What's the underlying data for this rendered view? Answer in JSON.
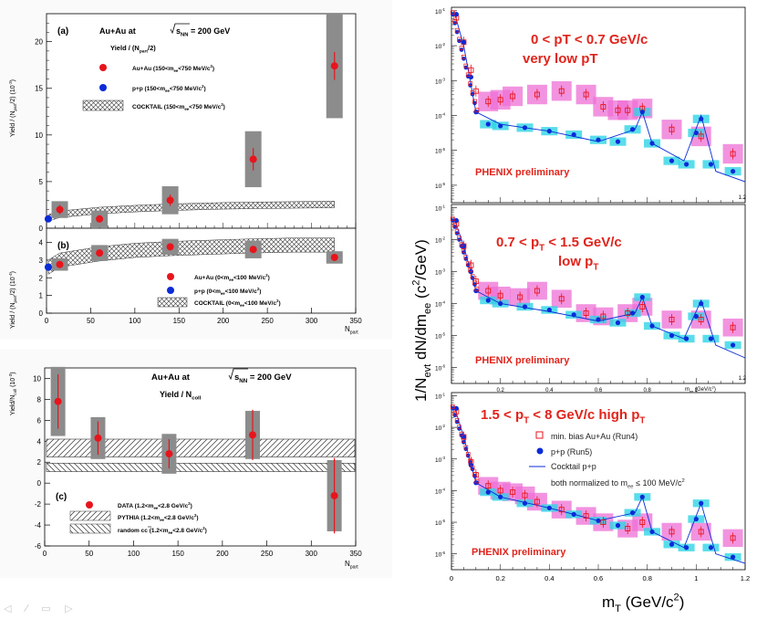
{
  "left": {
    "panel_a": {
      "label": "(a)",
      "title": "Au+Au at",
      "sqrt_label": "s",
      "sqrt_sub": "NN",
      "energy": "= 200 GeV",
      "subtitle": "Yield / (N",
      "subtitle_sub": "part",
      "subtitle_end": "/2)",
      "ylabel": "Yield / (N",
      "ylabel_sub": "part",
      "ylabel_end": "/2) (10",
      "ylabel_exp": "-3",
      "ylabel_close": ")",
      "yticks": [
        "0",
        "5",
        "10",
        "15",
        "20"
      ],
      "legend": [
        {
          "label": "Au+Au (150<m",
          "sub": "ee",
          "end": "<750 MeV/c",
          "sup": "2",
          "close": ")"
        },
        {
          "label": "p+p (150<m",
          "sub": "ee",
          "end": "<750 MeV/c",
          "sup": "2",
          "close": ")"
        },
        {
          "label": "COCKTAIL (150<m",
          "sub": "ee",
          "end": "<750 MeV/c",
          "sup": "2",
          "close": ")"
        }
      ]
    },
    "panel_b": {
      "label": "(b)",
      "ylabel": "Yield / (N",
      "ylabel_sub": "part",
      "ylabel_end": "/2) (10",
      "ylabel_exp": "-4",
      "ylabel_close": ")",
      "yticks": [
        "0",
        "1",
        "2",
        "3",
        "4"
      ],
      "xticks": [
        "0",
        "50",
        "100",
        "150",
        "200",
        "250",
        "300",
        "350"
      ],
      "xlabel": "N",
      "xlabel_sub": "part",
      "legend": [
        {
          "label": "Au+Au (0<m",
          "sub": "ee",
          "end": "<100 MeV/c",
          "sup": "2",
          "close": ")"
        },
        {
          "label": "p+p (0<m",
          "sub": "ee",
          "end": "<100 MeV/c",
          "sup": "2",
          "close": ")"
        },
        {
          "label": "COCKTAIL (0<m",
          "sub": "ee",
          "end": "<100 MeV/c",
          "sup": "2",
          "close": ")"
        }
      ]
    },
    "panel_c": {
      "label": "(c)",
      "title": "Au+Au at",
      "sqrt_label": "s",
      "sqrt_sub": "NN",
      "energy": "= 200 GeV",
      "subtitle": "Yield / N",
      "subtitle_sub": "coll",
      "ylabel": "Yield/N",
      "ylabel_sub": "coll",
      "ylabel_end": " (10",
      "ylabel_exp": "-3",
      "ylabel_close": ")",
      "yticks": [
        "-6",
        "-4",
        "-2",
        "0",
        "2",
        "4",
        "6",
        "8",
        "10"
      ],
      "xticks": [
        "0",
        "50",
        "100",
        "150",
        "200",
        "250",
        "300",
        "350"
      ],
      "xlabel": "N",
      "xlabel_sub": "part",
      "legend": [
        {
          "label": "DATA (1.2<m",
          "sub": "ee",
          "end": "<2.8 GeV/c",
          "sup": "2",
          "close": ")"
        },
        {
          "label": "PYTHIA (1.2<m",
          "sub": "ee",
          "end": "<2.8 GeV/c",
          "sup": "2",
          "close": ")"
        },
        {
          "label": "random c",
          "bar": "c",
          "close": " (1.2<m",
          "sub": "ee",
          "end": "<2.8 GeV/c",
          "sup": "2",
          "tail": ")"
        }
      ]
    }
  },
  "right": {
    "ylabel_parts": [
      "1/N",
      "evt",
      " dN/dm",
      "ee",
      " (c",
      "2",
      "/GeV)"
    ],
    "xlabel": "m",
    "xlabel_sub": "T",
    "xlabel_end": " (GeV/c",
    "xlabel_sup": "2",
    "xlabel_close": ")",
    "xticks": [
      "0",
      "0.2",
      "0.4",
      "0.6",
      "0.8",
      "1",
      "1.2"
    ],
    "xticks_last_mid": "1.2",
    "axis_unit_mid": "m",
    "axis_unit_mid_sub": "ee",
    "axis_unit_mid_end": " (GeV/c",
    "axis_unit_mid_sup": "2",
    "axis_unit_mid_close": ")",
    "yticks_exp": [
      "-1",
      "-2",
      "-3",
      "-4",
      "-5",
      "-6"
    ],
    "yticks_base": "10",
    "preliminary": "PHENIX preliminary",
    "top": {
      "line1": "0 < pT < 0.7 GeV/c",
      "line2": "very low pT"
    },
    "mid": {
      "line1a": "0.7 < p",
      "line1b": "T",
      "line1c": "< 1.5 GeV/c",
      "line2a": "low p",
      "line2b": "T"
    },
    "bot": {
      "line1a": "1.5 < p",
      "line1b": "T",
      "line1c": "< 8 GeV/c  high p",
      "line1d": "T"
    },
    "legend": [
      {
        "label": "min. bias Au+Au (Run4)"
      },
      {
        "label": "p+p (Run5)"
      },
      {
        "label": "Cocktail p+p"
      },
      {
        "label": "both normalized to m",
        "sub": "ee",
        "end": " ≤ 100 MeV/c",
        "sup": "2"
      }
    ]
  },
  "colors": {
    "red": "#e8141c",
    "blue": "#0a2bd8",
    "pink": "#ee6fd6",
    "cyan": "#2fd4e6",
    "grey": "#8c8c8c",
    "title_red": "#e0241c"
  },
  "chart_data": [
    {
      "type": "scatter",
      "title": "(a) Au+Au at sqrt(sNN) = 200 GeV, Yield / (Npart/2)",
      "xlabel": "Npart",
      "ylabel": "Yield / (Npart/2) (10^-3)",
      "xlim": [
        0,
        350
      ],
      "ylim": [
        0,
        23
      ],
      "series": [
        {
          "name": "Au+Au (150<mee<750 MeV/c2)",
          "x": [
            15,
            60,
            140,
            234,
            326
          ],
          "y": [
            2.0,
            1.0,
            3.0,
            7.4,
            17.4
          ],
          "sys": [
            0.9,
            0.9,
            1.5,
            3.0,
            5.6
          ],
          "err": [
            0.5,
            0.4,
            0.6,
            1.2,
            1.5
          ]
        },
        {
          "name": "p+p (150<mee<750 MeV/c2)",
          "x": [
            2
          ],
          "y": [
            1.0
          ]
        },
        {
          "name": "COCKTAIL (150<mee<750 MeV/c2)",
          "x": [
            2,
            15,
            60,
            100,
            140,
            200,
            234,
            280,
            326
          ],
          "y": [
            1.1,
            1.5,
            1.9,
            2.1,
            2.25,
            2.4,
            2.45,
            2.5,
            2.55
          ],
          "band": 0.35
        }
      ]
    },
    {
      "type": "scatter",
      "title": "(b) Yield / (Npart/2), 0<mee<100 MeV/c2",
      "xlabel": "Npart",
      "ylabel": "Yield / (Npart/2) (10^-4)",
      "xlim": [
        0,
        350
      ],
      "ylim": [
        0,
        4.8
      ],
      "series": [
        {
          "name": "Au+Au (0<mee<100 MeV/c2)",
          "x": [
            15,
            60,
            140,
            234,
            326
          ],
          "y": [
            2.75,
            3.4,
            3.75,
            3.6,
            3.15
          ],
          "sys": [
            0.35,
            0.45,
            0.45,
            0.5,
            0.35
          ],
          "err": [
            0.1,
            0.1,
            0.1,
            0.15,
            0.1
          ]
        },
        {
          "name": "p+p (0<mee<100 MeV/c2)",
          "x": [
            2
          ],
          "y": [
            2.6
          ]
        },
        {
          "name": "COCKTAIL (0<mee<100 MeV/c2)",
          "x": [
            2,
            15,
            60,
            100,
            140,
            200,
            234,
            280,
            326
          ],
          "y": [
            2.6,
            3.0,
            3.35,
            3.55,
            3.65,
            3.75,
            3.8,
            3.85,
            3.85
          ],
          "band": 0.4
        }
      ]
    },
    {
      "type": "scatter",
      "title": "(c) Au+Au at sqrt(sNN) = 200 GeV, Yield / Ncoll",
      "xlabel": "Npart",
      "ylabel": "Yield/Ncoll (10^-3)",
      "xlim": [
        0,
        350
      ],
      "ylim": [
        -6,
        11
      ],
      "series": [
        {
          "name": "DATA (1.2<mee<2.8 GeV/c2)",
          "x": [
            15,
            60,
            140,
            234,
            326
          ],
          "y": [
            7.8,
            4.3,
            2.8,
            4.6,
            -1.2
          ],
          "sys": [
            3.3,
            2.0,
            1.9,
            2.3,
            3.4
          ],
          "err": [
            2.6,
            1.6,
            1.4,
            2.4,
            3.6
          ]
        },
        {
          "name": "PYTHIA (1.2<mee<2.8 GeV/c2)",
          "band_y": [
            2.5,
            4.2
          ]
        },
        {
          "name": "random c cbar (1.2<mee<2.8 GeV/c2)",
          "band_y": [
            1.1,
            1.9
          ]
        }
      ]
    },
    {
      "type": "scatter",
      "title": "0 < pT < 0.7 GeV/c very low pT",
      "xlabel": "mT (GeV/c2)",
      "ylabel": "1/Nevt dN/dmee (c2/GeV)",
      "xlim": [
        0,
        1.2
      ],
      "ylim_log10": [
        -6.5,
        -0.9
      ],
      "series": [
        {
          "name": "min. bias Au+Au (Run4)",
          "x": [
            0.02,
            0.05,
            0.08,
            0.1,
            0.15,
            0.2,
            0.25,
            0.35,
            0.45,
            0.55,
            0.62,
            0.68,
            0.72,
            0.78,
            0.9,
            1.02,
            1.15
          ],
          "y_log10": [
            -1.2,
            -1.9,
            -2.7,
            -3.3,
            -3.6,
            -3.55,
            -3.45,
            -3.4,
            -3.3,
            -3.4,
            -3.75,
            -3.85,
            -3.85,
            -3.8,
            -4.4,
            -4.6,
            -5.1
          ]
        },
        {
          "name": "p+p (Run5)",
          "x": [
            0.02,
            0.05,
            0.08,
            0.1,
            0.15,
            0.2,
            0.3,
            0.4,
            0.5,
            0.6,
            0.68,
            0.74,
            0.78,
            0.82,
            0.9,
            0.96,
            1.0,
            1.02,
            1.06,
            1.15
          ],
          "y_log10": [
            -1.1,
            -1.9,
            -2.9,
            -3.9,
            -4.25,
            -4.3,
            -4.35,
            -4.45,
            -4.55,
            -4.7,
            -4.75,
            -4.4,
            -3.9,
            -4.8,
            -5.3,
            -5.4,
            -4.5,
            -4.1,
            -5.4,
            -5.6
          ]
        },
        {
          "name": "Cocktail p+p",
          "x": [
            0.01,
            0.05,
            0.1,
            0.2,
            0.4,
            0.6,
            0.75,
            0.78,
            0.82,
            0.95,
            1.02,
            1.08,
            1.2
          ],
          "y_log10": [
            -1.0,
            -2.0,
            -3.9,
            -4.25,
            -4.45,
            -4.75,
            -4.4,
            -3.9,
            -4.8,
            -5.3,
            -4.0,
            -5.6,
            -5.9
          ]
        }
      ]
    },
    {
      "type": "scatter",
      "title": "0.7 < pT < 1.5 GeV/c low pT",
      "xlabel": "mT (GeV/c2)",
      "ylabel": "1/Nevt dN/dmee (c2/GeV)",
      "xlim": [
        0,
        1.2
      ],
      "ylim_log10": [
        -6.5,
        -0.9
      ],
      "series": [
        {
          "name": "min. bias Au+Au (Run4)",
          "x": [
            0.02,
            0.05,
            0.08,
            0.1,
            0.15,
            0.2,
            0.28,
            0.35,
            0.45,
            0.55,
            0.62,
            0.72,
            0.78,
            0.9,
            1.02,
            1.15
          ],
          "y_log10": [
            -1.5,
            -2.2,
            -2.8,
            -3.3,
            -3.6,
            -3.75,
            -3.8,
            -3.6,
            -3.85,
            -4.3,
            -4.4,
            -4.3,
            -4.1,
            -4.5,
            -4.5,
            -4.75
          ]
        },
        {
          "name": "p+p (Run5)",
          "x": [
            0.02,
            0.05,
            0.08,
            0.1,
            0.15,
            0.2,
            0.3,
            0.4,
            0.5,
            0.6,
            0.68,
            0.74,
            0.78,
            0.82,
            0.9,
            0.96,
            1.0,
            1.02,
            1.06,
            1.15
          ],
          "y_log10": [
            -1.4,
            -2.2,
            -3.0,
            -3.6,
            -3.9,
            -4.0,
            -4.1,
            -4.2,
            -4.35,
            -4.5,
            -4.6,
            -4.3,
            -3.8,
            -4.7,
            -5.0,
            -5.1,
            -4.4,
            -4.0,
            -5.1,
            -5.3
          ]
        },
        {
          "name": "Cocktail p+p",
          "x": [
            0.01,
            0.05,
            0.1,
            0.2,
            0.4,
            0.6,
            0.75,
            0.78,
            0.82,
            0.95,
            1.02,
            1.08,
            1.2
          ],
          "y_log10": [
            -1.3,
            -2.2,
            -3.6,
            -4.0,
            -4.25,
            -4.55,
            -4.3,
            -3.8,
            -4.7,
            -5.1,
            -3.9,
            -5.3,
            -5.7
          ]
        }
      ]
    },
    {
      "type": "scatter",
      "title": "1.5 < pT < 8 GeV/c high pT",
      "xlabel": "mT (GeV/c2)",
      "ylabel": "1/Nevt dN/dmee (c2/GeV)",
      "xlim": [
        0,
        1.2
      ],
      "ylim_log10": [
        -6.5,
        -0.9
      ],
      "series": [
        {
          "name": "min. bias Au+Au (Run4)",
          "x": [
            0.02,
            0.05,
            0.08,
            0.1,
            0.15,
            0.2,
            0.25,
            0.3,
            0.35,
            0.45,
            0.55,
            0.62,
            0.72,
            0.78,
            0.9,
            1.02,
            1.15
          ],
          "y_log10": [
            -1.5,
            -2.3,
            -3.1,
            -3.5,
            -3.85,
            -4.0,
            -4.05,
            -4.15,
            -4.35,
            -4.6,
            -4.8,
            -5.0,
            -5.2,
            -5.0,
            -5.3,
            -5.3,
            -5.5
          ]
        },
        {
          "name": "p+p (Run5)",
          "x": [
            0.02,
            0.05,
            0.08,
            0.1,
            0.15,
            0.2,
            0.3,
            0.4,
            0.5,
            0.6,
            0.68,
            0.74,
            0.78,
            0.82,
            0.9,
            0.96,
            1.0,
            1.02,
            1.06,
            1.15
          ],
          "y_log10": [
            -1.4,
            -2.3,
            -3.2,
            -3.75,
            -4.05,
            -4.2,
            -4.4,
            -4.55,
            -4.75,
            -4.95,
            -5.1,
            -4.7,
            -4.2,
            -5.3,
            -5.7,
            -5.8,
            -4.9,
            -4.4,
            -5.8,
            -6.1
          ]
        },
        {
          "name": "Cocktail p+p",
          "x": [
            0.01,
            0.05,
            0.1,
            0.2,
            0.4,
            0.6,
            0.75,
            0.78,
            0.82,
            0.95,
            1.02,
            1.08,
            1.2
          ],
          "y_log10": [
            -1.3,
            -2.3,
            -3.75,
            -4.2,
            -4.55,
            -4.95,
            -4.7,
            -4.2,
            -5.3,
            -5.8,
            -4.4,
            -6.0,
            -6.3
          ]
        }
      ]
    }
  ]
}
